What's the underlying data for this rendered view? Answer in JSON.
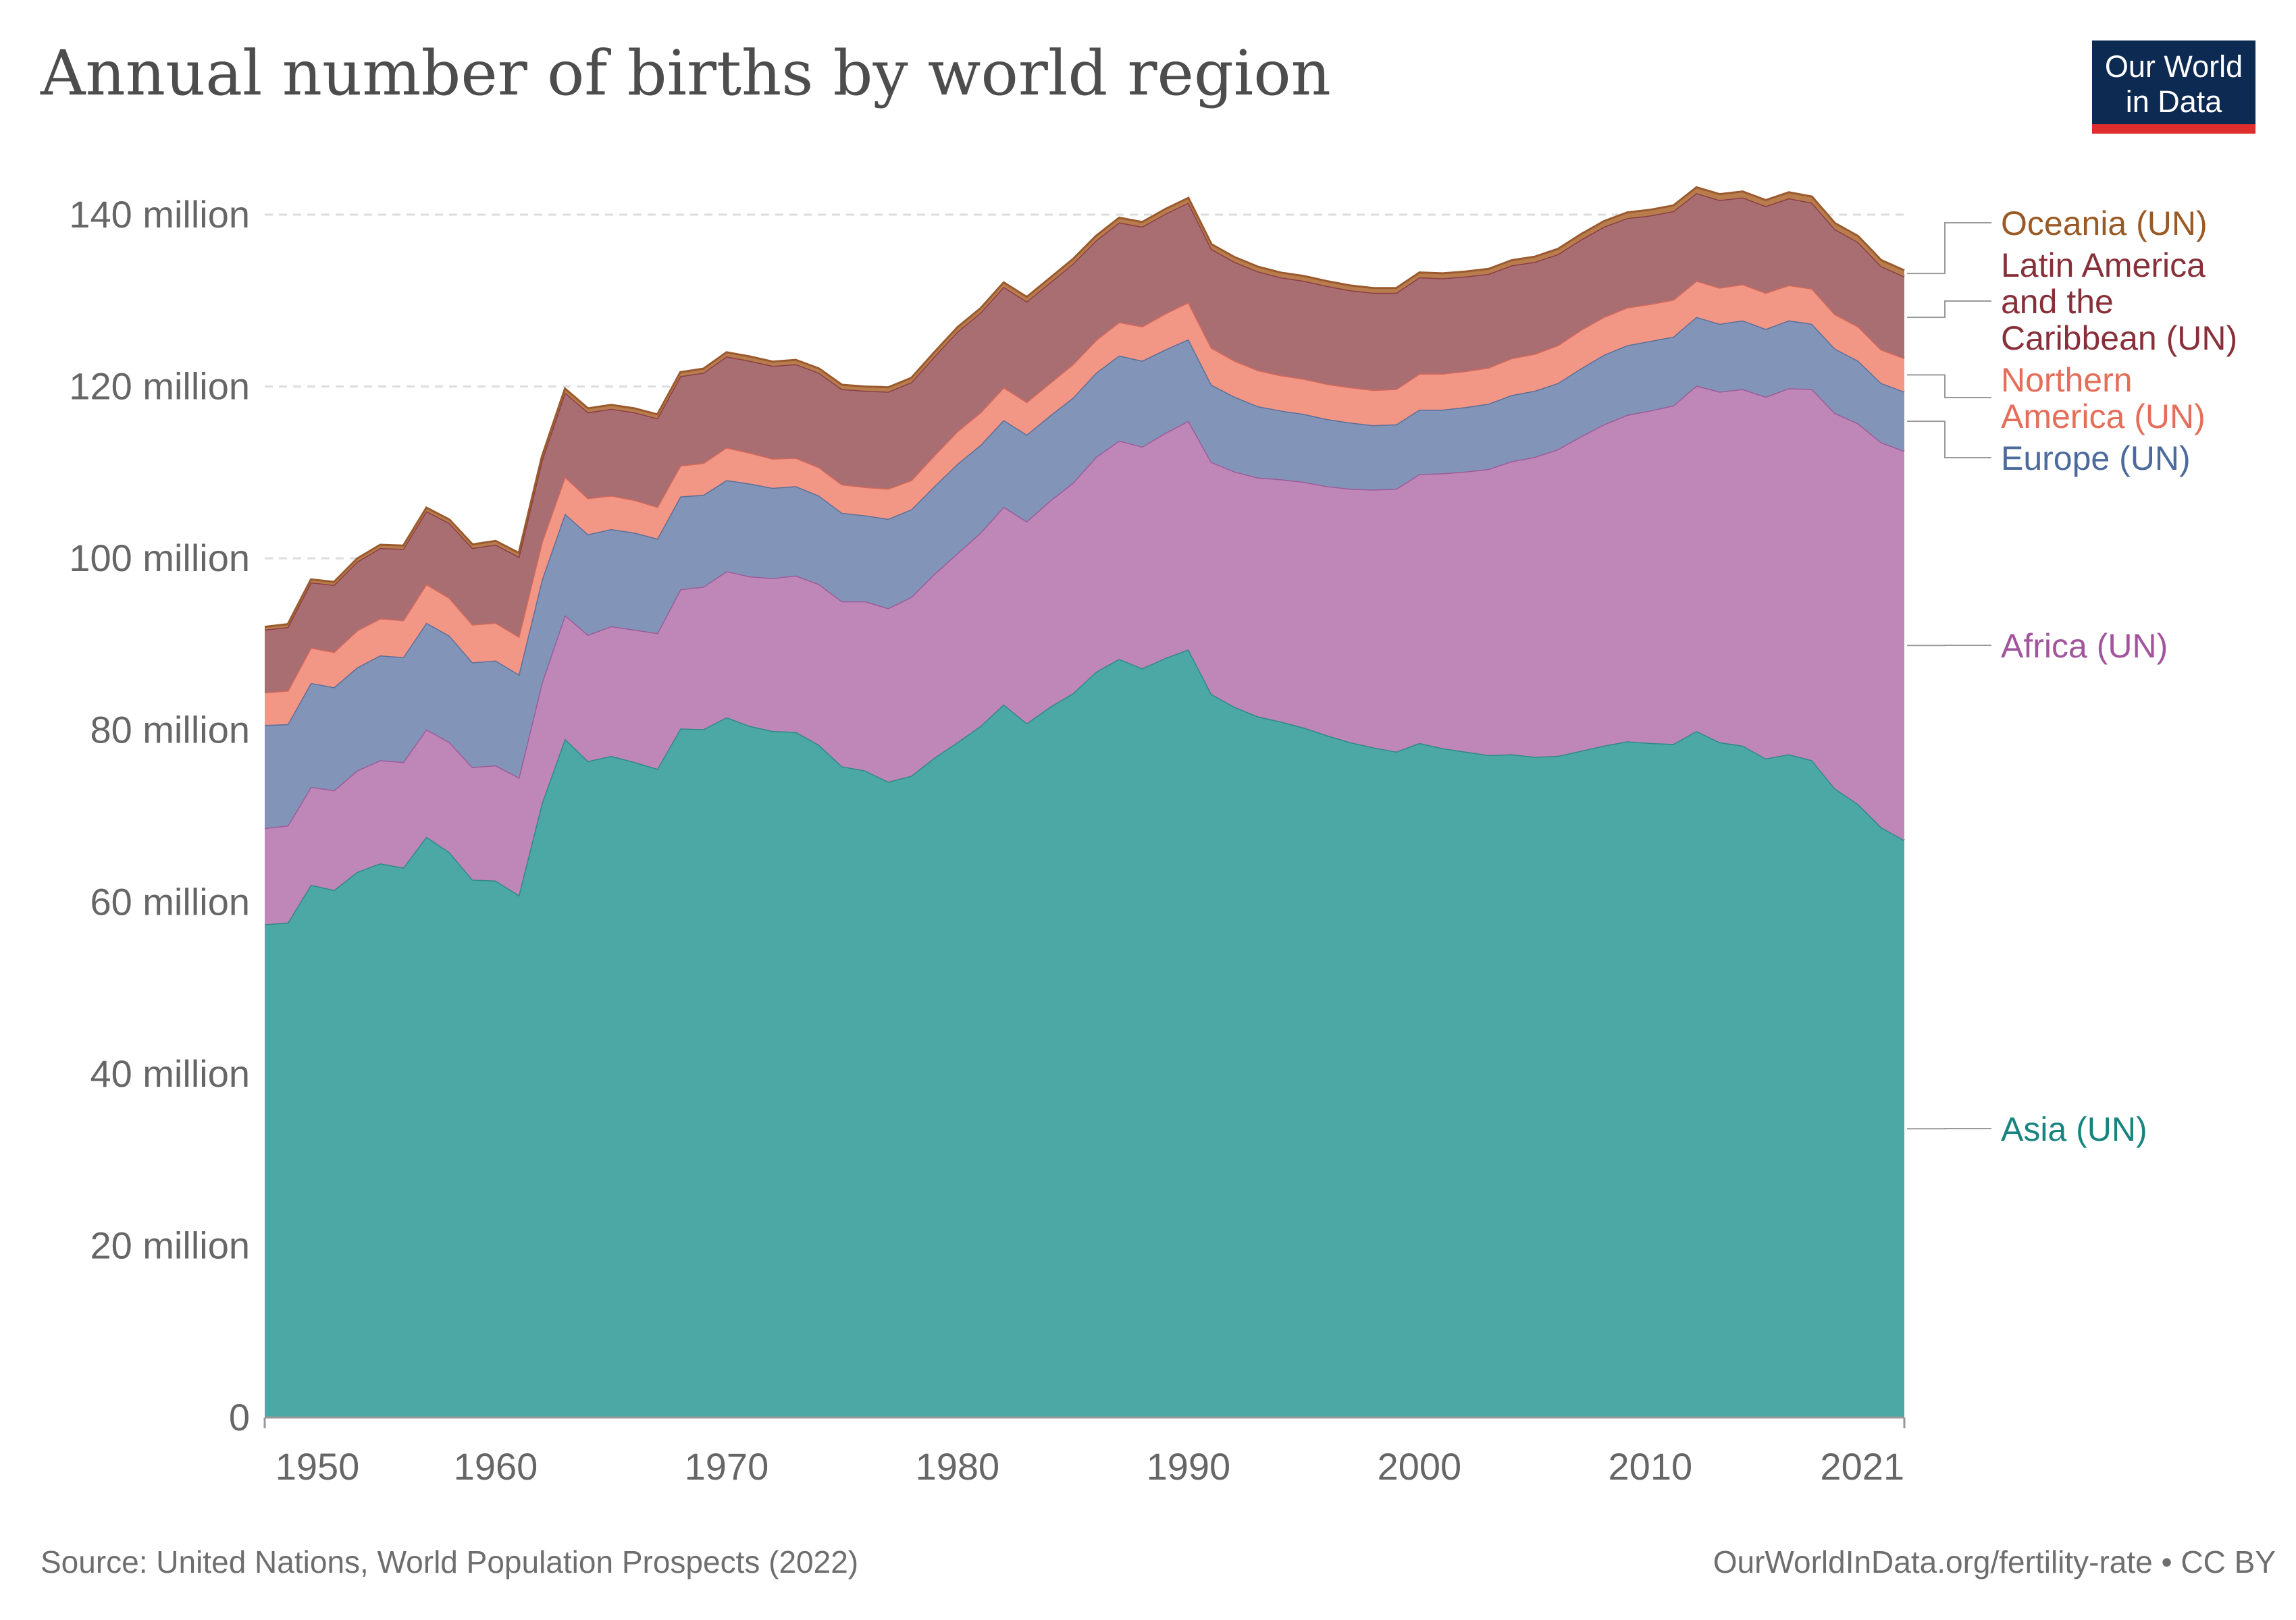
{
  "title": "Annual number of births by world region",
  "logo": {
    "line1": "Our World",
    "line2": "in Data",
    "bg": "#0d2a52",
    "accent": "#dd2d2d"
  },
  "footer": {
    "source": "Source: United Nations, World Population Prospects (2022)",
    "credit": "OurWorldInData.org/fertility-rate • CC BY"
  },
  "chart_data": {
    "type": "area",
    "stacked": true,
    "title": "Annual number of births by world region",
    "xlabel": "",
    "ylabel": "",
    "xlim": [
      1950,
      2021
    ],
    "ylim": [
      0,
      140000000
    ],
    "y_ticks": [
      0,
      20000000,
      40000000,
      60000000,
      80000000,
      100000000,
      120000000,
      140000000
    ],
    "y_tick_labels": [
      "0",
      "20 million",
      "40 million",
      "60 million",
      "80 million",
      "100 million",
      "120 million",
      "140 million"
    ],
    "x_ticks": [
      1950,
      1960,
      1970,
      1980,
      1990,
      2000,
      2010,
      2021
    ],
    "x_tick_labels": [
      "1950",
      "1960",
      "1970",
      "1980",
      "1990",
      "2000",
      "2010",
      "2021"
    ],
    "grid": "horizontal dashed",
    "legend": "right, inline labels",
    "x": [
      1950,
      1951,
      1952,
      1953,
      1954,
      1955,
      1956,
      1957,
      1958,
      1959,
      1960,
      1961,
      1962,
      1963,
      1964,
      1965,
      1966,
      1967,
      1968,
      1969,
      1970,
      1971,
      1972,
      1973,
      1974,
      1975,
      1976,
      1977,
      1978,
      1979,
      1980,
      1981,
      1982,
      1983,
      1984,
      1985,
      1986,
      1987,
      1988,
      1989,
      1990,
      1991,
      1992,
      1993,
      1994,
      1995,
      1996,
      1997,
      1998,
      1999,
      2000,
      2001,
      2002,
      2003,
      2004,
      2005,
      2006,
      2007,
      2008,
      2009,
      2010,
      2011,
      2012,
      2013,
      2014,
      2015,
      2016,
      2017,
      2018,
      2019,
      2020,
      2021
    ],
    "series": [
      {
        "name": "Asia (UN)",
        "color": "#4ca8a5",
        "line": "#2e8a86",
        "label_color": "#18847f",
        "values": [
          57.4,
          57.6,
          62.0,
          61.4,
          63.5,
          64.5,
          64.0,
          67.6,
          65.8,
          62.6,
          62.5,
          60.8,
          71.5,
          79.0,
          76.4,
          77.0,
          76.3,
          75.5,
          80.2,
          80.1,
          81.5,
          80.5,
          79.9,
          79.8,
          78.3,
          75.8,
          75.3,
          74.0,
          74.7,
          76.8,
          78.6,
          80.5,
          83.0,
          80.8,
          82.7,
          84.3,
          86.8,
          88.3,
          87.2,
          88.4,
          89.4,
          84.2,
          82.7,
          81.6,
          81.0,
          80.3,
          79.4,
          78.6,
          78.0,
          77.5,
          78.5,
          77.9,
          77.5,
          77.1,
          77.2,
          76.9,
          77.0,
          77.6,
          78.2,
          78.7,
          78.5,
          78.4,
          79.9,
          78.6,
          78.2,
          76.7,
          77.2,
          76.5,
          73.2,
          71.4,
          68.7,
          67.2
        ]
      },
      {
        "name": "Africa (UN)",
        "color": "#be87b8",
        "line": "#9d5b98",
        "label_color": "#a2559c",
        "values": [
          11.2,
          11.3,
          11.4,
          11.6,
          11.8,
          12.0,
          12.3,
          12.5,
          12.8,
          13.1,
          13.4,
          13.7,
          14.0,
          14.4,
          14.7,
          15.1,
          15.4,
          15.8,
          16.2,
          16.6,
          17.0,
          17.4,
          17.8,
          18.2,
          18.7,
          19.2,
          19.7,
          20.2,
          20.8,
          21.4,
          22.0,
          22.5,
          23.0,
          23.5,
          24.0,
          24.5,
          25.0,
          25.4,
          25.8,
          26.2,
          26.6,
          27.0,
          27.4,
          27.8,
          28.2,
          28.6,
          29.0,
          29.5,
          30.0,
          30.6,
          31.3,
          32.0,
          32.6,
          33.3,
          34.1,
          34.9,
          35.7,
          36.6,
          37.4,
          38.0,
          38.7,
          39.4,
          40.2,
          40.8,
          41.5,
          42.1,
          42.6,
          43.2,
          43.7,
          44.3,
          44.8,
          45.3
        ]
      },
      {
        "name": "Europe (UN)",
        "color": "#8295b9",
        "line": "#5a6f9a",
        "label_color": "#4c6a9c",
        "values": [
          12.0,
          11.8,
          12.1,
          12.0,
          12.0,
          12.2,
          12.2,
          12.4,
          12.4,
          12.2,
          12.2,
          12.0,
          12.0,
          11.8,
          11.7,
          11.3,
          11.3,
          11.0,
          10.8,
          10.7,
          10.6,
          10.8,
          10.5,
          10.4,
          10.3,
          10.3,
          10.0,
          10.4,
          10.2,
          10.2,
          10.4,
          10.2,
          10.1,
          10.1,
          9.9,
          9.9,
          9.8,
          9.9,
          10.0,
          9.7,
          9.5,
          9.0,
          8.7,
          8.3,
          8.0,
          7.9,
          7.8,
          7.7,
          7.5,
          7.5,
          7.5,
          7.4,
          7.5,
          7.6,
          7.7,
          7.7,
          7.7,
          7.9,
          8.1,
          8.1,
          8.1,
          8.0,
          8.0,
          7.9,
          8.0,
          7.9,
          7.9,
          7.6,
          7.5,
          7.3,
          6.9,
          6.9
        ]
      },
      {
        "name": "Northern America (UN)",
        "color": "#f29686",
        "line": "#d4685a",
        "label_color": "#e56e5a",
        "values": [
          3.8,
          3.9,
          4.1,
          4.1,
          4.3,
          4.3,
          4.3,
          4.5,
          4.4,
          4.4,
          4.4,
          4.4,
          4.4,
          4.3,
          4.2,
          3.9,
          3.8,
          3.7,
          3.6,
          3.7,
          3.8,
          3.6,
          3.4,
          3.3,
          3.3,
          3.3,
          3.3,
          3.5,
          3.4,
          3.6,
          3.8,
          3.8,
          3.8,
          3.8,
          3.8,
          3.9,
          3.8,
          3.9,
          4.0,
          4.2,
          4.3,
          4.3,
          4.2,
          4.2,
          4.1,
          4.1,
          4.1,
          4.1,
          4.1,
          4.1,
          4.2,
          4.2,
          4.2,
          4.2,
          4.3,
          4.3,
          4.4,
          4.5,
          4.4,
          4.4,
          4.3,
          4.3,
          4.2,
          4.2,
          4.2,
          4.2,
          4.1,
          4.1,
          4.0,
          4.0,
          3.9,
          3.9
        ]
      },
      {
        "name": "Latin America and the Caribbean (UN)",
        "color": "#a96e72",
        "line": "#8a3e46",
        "label_color": "#883039",
        "values": [
          7.3,
          7.4,
          7.6,
          7.8,
          8.0,
          8.2,
          8.3,
          8.5,
          8.7,
          8.9,
          9.1,
          9.3,
          9.5,
          9.8,
          10.0,
          10.1,
          10.2,
          10.3,
          10.4,
          10.5,
          10.6,
          10.7,
          10.8,
          10.9,
          11.0,
          11.1,
          11.2,
          11.3,
          11.4,
          11.5,
          11.6,
          11.6,
          11.7,
          11.7,
          11.7,
          11.7,
          11.6,
          11.6,
          11.6,
          11.6,
          11.6,
          11.5,
          11.5,
          11.5,
          11.4,
          11.4,
          11.4,
          11.3,
          11.3,
          11.2,
          11.2,
          11.1,
          11.0,
          10.9,
          10.8,
          10.7,
          10.6,
          10.5,
          10.5,
          10.4,
          10.3,
          10.3,
          10.2,
          10.2,
          10.1,
          10.1,
          10.1,
          10.0,
          9.9,
          9.8,
          9.7,
          9.5
        ]
      },
      {
        "name": "Oceania (UN)",
        "color": "#b97d4d",
        "line": "#9a5a2e",
        "label_color": "#9a5a25",
        "values": [
          0.33,
          0.34,
          0.35,
          0.36,
          0.37,
          0.38,
          0.39,
          0.4,
          0.41,
          0.42,
          0.43,
          0.44,
          0.45,
          0.46,
          0.46,
          0.46,
          0.46,
          0.46,
          0.47,
          0.48,
          0.49,
          0.5,
          0.5,
          0.5,
          0.5,
          0.5,
          0.5,
          0.5,
          0.5,
          0.51,
          0.51,
          0.52,
          0.52,
          0.53,
          0.53,
          0.54,
          0.54,
          0.55,
          0.55,
          0.56,
          0.56,
          0.56,
          0.56,
          0.56,
          0.56,
          0.56,
          0.56,
          0.56,
          0.56,
          0.57,
          0.57,
          0.57,
          0.58,
          0.59,
          0.6,
          0.61,
          0.62,
          0.64,
          0.65,
          0.66,
          0.67,
          0.68,
          0.69,
          0.69,
          0.7,
          0.7,
          0.71,
          0.71,
          0.71,
          0.71,
          0.71,
          0.72
        ]
      }
    ]
  }
}
